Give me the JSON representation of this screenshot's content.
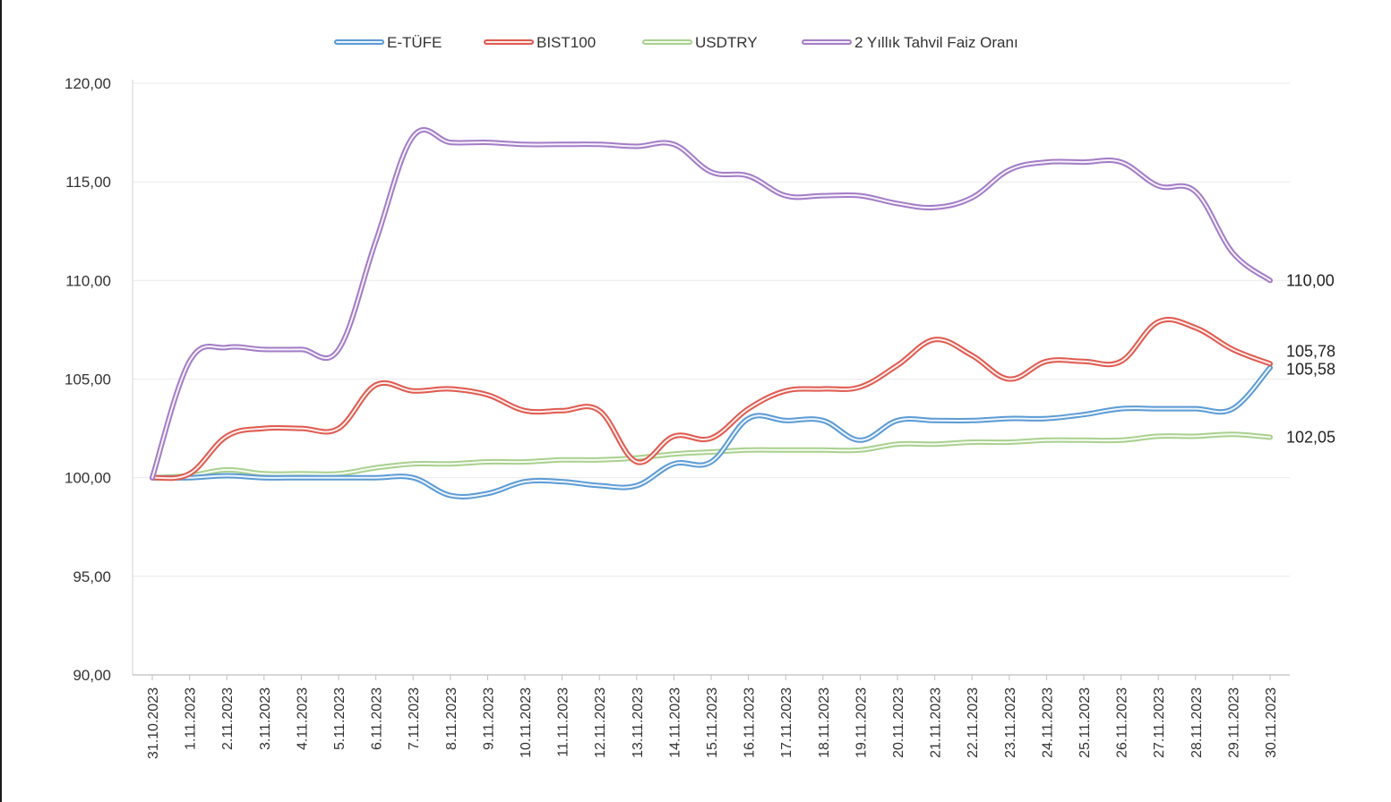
{
  "chart_data": {
    "type": "line",
    "title": "",
    "xlabel": "",
    "ylabel": "",
    "ylim": [
      90,
      120
    ],
    "yticks": [
      "90,00",
      "95,00",
      "100,00",
      "105,00",
      "110,00",
      "115,00",
      "120,00"
    ],
    "ytick_values": [
      90,
      95,
      100,
      105,
      110,
      115,
      120
    ],
    "grid": true,
    "legend_position": "top-center",
    "categories": [
      "31.10.2023",
      "1.11.2023",
      "2.11.2023",
      "3.11.2023",
      "4.11.2023",
      "5.11.2023",
      "6.11.2023",
      "7.11.2023",
      "8.11.2023",
      "9.11.2023",
      "10.11.2023",
      "11.11.2023",
      "12.11.2023",
      "13.11.2023",
      "14.11.2023",
      "15.11.2023",
      "16.11.2023",
      "17.11.2023",
      "18.11.2023",
      "19.11.2023",
      "20.11.2023",
      "21.11.2023",
      "22.11.2023",
      "23.11.2023",
      "24.11.2023",
      "25.11.2023",
      "26.11.2023",
      "27.11.2023",
      "28.11.2023",
      "29.11.2023",
      "30.11.2023"
    ],
    "series": [
      {
        "name": "E-TÜFE",
        "color": "#5b9bd5",
        "values": [
          100.0,
          100.0,
          100.1,
          100.0,
          100.0,
          100.0,
          100.0,
          100.0,
          99.1,
          99.2,
          99.8,
          99.8,
          99.6,
          99.6,
          100.7,
          100.8,
          103.0,
          102.9,
          102.9,
          101.9,
          102.9,
          102.9,
          102.9,
          103.0,
          103.0,
          103.2,
          103.5,
          103.5,
          103.5,
          103.5,
          105.58
        ],
        "end_label": "105,58"
      },
      {
        "name": "BIST100",
        "color": "#e05a4f",
        "values": [
          100.0,
          100.2,
          102.1,
          102.5,
          102.5,
          102.5,
          104.7,
          104.4,
          104.5,
          104.2,
          103.4,
          103.4,
          103.4,
          100.8,
          102.1,
          102.0,
          103.5,
          104.4,
          104.5,
          104.6,
          105.7,
          107.0,
          106.2,
          105.0,
          105.9,
          105.9,
          105.9,
          107.9,
          107.6,
          106.5,
          105.78
        ],
        "end_label": "105,78"
      },
      {
        "name": "USDTRY",
        "color": "#a9d18e",
        "values": [
          100.0,
          100.1,
          100.4,
          100.2,
          100.2,
          100.2,
          100.5,
          100.7,
          100.7,
          100.8,
          100.8,
          100.9,
          100.9,
          101.0,
          101.2,
          101.3,
          101.4,
          101.4,
          101.4,
          101.4,
          101.7,
          101.7,
          101.8,
          101.8,
          101.9,
          101.9,
          101.9,
          102.1,
          102.1,
          102.2,
          102.05
        ],
        "end_label": "102,05"
      },
      {
        "name": "2 Yıllık Tahvil Faiz Oranı",
        "color": "#a37cc7",
        "values": [
          100.0,
          105.9,
          106.6,
          106.5,
          106.5,
          106.5,
          112.0,
          117.3,
          117.0,
          117.0,
          116.9,
          116.9,
          116.9,
          116.8,
          116.9,
          115.5,
          115.3,
          114.3,
          114.3,
          114.3,
          113.9,
          113.7,
          114.2,
          115.6,
          116.0,
          116.0,
          116.0,
          114.8,
          114.5,
          111.4,
          110.0
        ],
        "end_label": "110,00"
      }
    ]
  }
}
